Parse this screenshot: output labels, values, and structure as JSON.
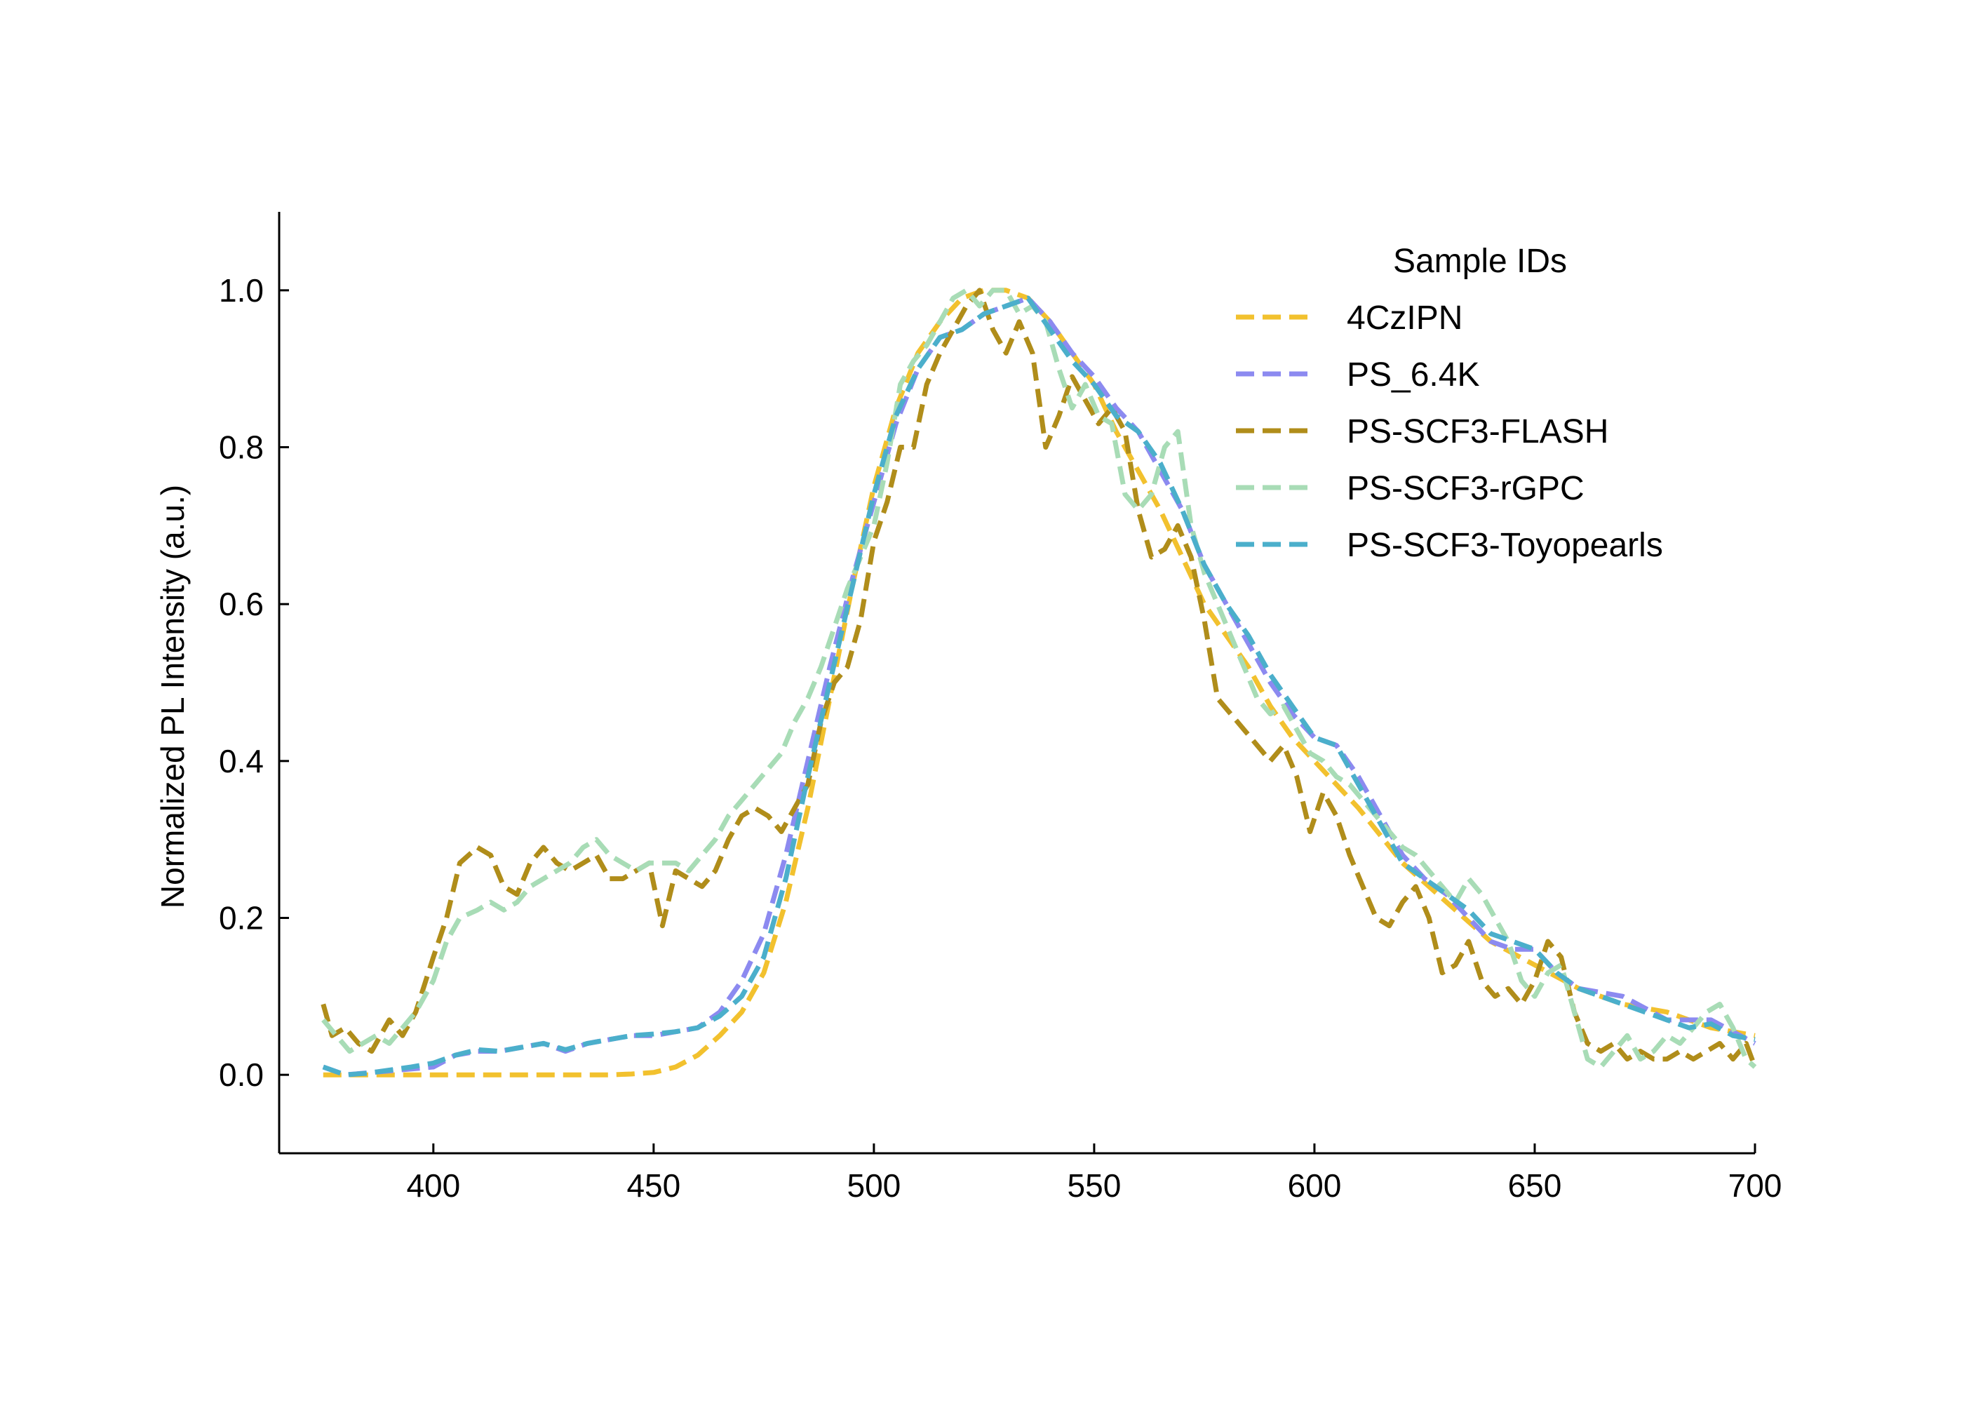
{
  "chart_data": {
    "type": "line",
    "xlabel": "",
    "ylabel": "Normalized PL Intensity (a.u.)",
    "xlim": [
      365,
      700
    ],
    "ylim": [
      -0.1,
      1.1
    ],
    "xticks": [
      "400",
      "450",
      "500",
      "550",
      "600",
      "650",
      "700"
    ],
    "yticks": [
      "0.0",
      "0.2",
      "0.4",
      "0.6",
      "0.8",
      "1.0"
    ],
    "grid": false,
    "legend": {
      "title": "Sample IDs",
      "position": "top-right"
    },
    "series": [
      {
        "name": "4CzIPN",
        "color": "#F2C12E",
        "x": [
          375,
          380,
          390,
          400,
          410,
          420,
          430,
          440,
          445,
          450,
          455,
          460,
          465,
          470,
          475,
          480,
          485,
          490,
          495,
          500,
          505,
          510,
          515,
          520,
          525,
          530,
          535,
          540,
          545,
          550,
          555,
          560,
          565,
          570,
          575,
          580,
          585,
          590,
          595,
          600,
          605,
          610,
          620,
          630,
          640,
          650,
          660,
          670,
          680,
          690,
          700
        ],
        "y": [
          0,
          0,
          0,
          0,
          0,
          0,
          0,
          0,
          0.001,
          0.003,
          0.01,
          0.025,
          0.05,
          0.08,
          0.13,
          0.22,
          0.34,
          0.48,
          0.62,
          0.75,
          0.85,
          0.92,
          0.96,
          0.99,
          1.0,
          1.0,
          0.99,
          0.96,
          0.92,
          0.88,
          0.82,
          0.77,
          0.72,
          0.66,
          0.6,
          0.56,
          0.52,
          0.47,
          0.43,
          0.4,
          0.37,
          0.34,
          0.27,
          0.22,
          0.17,
          0.14,
          0.11,
          0.09,
          0.08,
          0.06,
          0.05
        ]
      },
      {
        "name": "PS_6.4K",
        "color": "#8C8AF0",
        "x": [
          375,
          380,
          390,
          400,
          405,
          410,
          415,
          420,
          425,
          430,
          435,
          440,
          445,
          450,
          455,
          460,
          465,
          470,
          475,
          480,
          485,
          490,
          495,
          500,
          505,
          510,
          515,
          520,
          525,
          530,
          535,
          540,
          545,
          550,
          555,
          560,
          565,
          570,
          575,
          580,
          585,
          590,
          595,
          600,
          605,
          610,
          615,
          620,
          625,
          630,
          635,
          640,
          645,
          650,
          655,
          660,
          670,
          680,
          690,
          700
        ],
        "y": [
          0.01,
          0,
          0.005,
          0.01,
          0.025,
          0.03,
          0.03,
          0.035,
          0.04,
          0.03,
          0.04,
          0.045,
          0.05,
          0.05,
          0.055,
          0.06,
          0.08,
          0.12,
          0.18,
          0.28,
          0.4,
          0.52,
          0.63,
          0.73,
          0.83,
          0.9,
          0.94,
          0.95,
          0.97,
          0.98,
          0.99,
          0.96,
          0.92,
          0.89,
          0.85,
          0.82,
          0.77,
          0.72,
          0.65,
          0.6,
          0.55,
          0.5,
          0.46,
          0.43,
          0.42,
          0.38,
          0.33,
          0.28,
          0.25,
          0.23,
          0.2,
          0.17,
          0.16,
          0.16,
          0.13,
          0.11,
          0.1,
          0.07,
          0.07,
          0.04
        ]
      },
      {
        "name": "PS-SCF3-FLASH",
        "color": "#B08D1A",
        "x": [
          375,
          377,
          380,
          383,
          386,
          390,
          393,
          396,
          400,
          403,
          406,
          410,
          413,
          416,
          419,
          422,
          425,
          428,
          431,
          434,
          437,
          440,
          443,
          446,
          449,
          452,
          455,
          458,
          461,
          464,
          467,
          470,
          473,
          476,
          479,
          482,
          485,
          488,
          491,
          494,
          497,
          500,
          503,
          506,
          509,
          512,
          515,
          518,
          521,
          524,
          527,
          530,
          533,
          536,
          539,
          542,
          545,
          548,
          551,
          554,
          557,
          560,
          563,
          566,
          569,
          572,
          575,
          578,
          581,
          584,
          587,
          590,
          593,
          596,
          599,
          602,
          605,
          608,
          611,
          614,
          617,
          620,
          623,
          626,
          629,
          632,
          635,
          638,
          641,
          644,
          647,
          650,
          653,
          656,
          659,
          662,
          665,
          668,
          671,
          674,
          677,
          680,
          683,
          686,
          689,
          692,
          695,
          698,
          700
        ],
        "y": [
          0.09,
          0.05,
          0.06,
          0.04,
          0.03,
          0.07,
          0.05,
          0.08,
          0.15,
          0.2,
          0.27,
          0.29,
          0.28,
          0.24,
          0.23,
          0.27,
          0.29,
          0.27,
          0.26,
          0.27,
          0.28,
          0.25,
          0.25,
          0.26,
          0.27,
          0.19,
          0.26,
          0.25,
          0.24,
          0.26,
          0.3,
          0.33,
          0.34,
          0.33,
          0.31,
          0.34,
          0.37,
          0.45,
          0.5,
          0.52,
          0.58,
          0.68,
          0.73,
          0.8,
          0.8,
          0.88,
          0.92,
          0.95,
          0.98,
          1.0,
          0.95,
          0.92,
          0.96,
          0.92,
          0.8,
          0.84,
          0.89,
          0.86,
          0.83,
          0.85,
          0.82,
          0.72,
          0.66,
          0.67,
          0.7,
          0.66,
          0.58,
          0.48,
          0.46,
          0.44,
          0.42,
          0.4,
          0.42,
          0.38,
          0.31,
          0.36,
          0.33,
          0.28,
          0.24,
          0.2,
          0.19,
          0.22,
          0.24,
          0.2,
          0.13,
          0.14,
          0.17,
          0.12,
          0.1,
          0.11,
          0.09,
          0.12,
          0.17,
          0.15,
          0.08,
          0.04,
          0.03,
          0.04,
          0.02,
          0.03,
          0.02,
          0.02,
          0.03,
          0.02,
          0.03,
          0.04,
          0.02,
          0.04,
          0.01
        ]
      },
      {
        "name": "PS-SCF3-rGPC",
        "color": "#A8DCB6",
        "x": [
          375,
          378,
          381,
          384,
          387,
          390,
          393,
          396,
          400,
          403,
          406,
          410,
          413,
          416,
          419,
          422,
          425,
          428,
          431,
          434,
          437,
          440,
          443,
          446,
          449,
          452,
          455,
          458,
          461,
          464,
          467,
          470,
          473,
          476,
          479,
          482,
          485,
          488,
          491,
          494,
          497,
          500,
          503,
          506,
          509,
          512,
          515,
          518,
          521,
          524,
          527,
          530,
          533,
          536,
          539,
          542,
          545,
          548,
          551,
          554,
          557,
          560,
          563,
          566,
          569,
          572,
          575,
          578,
          581,
          584,
          587,
          590,
          593,
          596,
          599,
          602,
          605,
          608,
          611,
          614,
          617,
          620,
          623,
          626,
          629,
          632,
          635,
          638,
          641,
          644,
          647,
          650,
          653,
          656,
          659,
          662,
          665,
          668,
          671,
          674,
          677,
          680,
          683,
          686,
          689,
          692,
          695,
          698,
          700
        ],
        "y": [
          0.07,
          0.05,
          0.03,
          0.04,
          0.05,
          0.04,
          0.06,
          0.08,
          0.12,
          0.17,
          0.2,
          0.21,
          0.22,
          0.21,
          0.22,
          0.24,
          0.25,
          0.26,
          0.27,
          0.29,
          0.3,
          0.28,
          0.27,
          0.26,
          0.27,
          0.27,
          0.27,
          0.26,
          0.28,
          0.3,
          0.33,
          0.35,
          0.37,
          0.39,
          0.41,
          0.45,
          0.48,
          0.52,
          0.57,
          0.62,
          0.66,
          0.7,
          0.78,
          0.88,
          0.91,
          0.93,
          0.96,
          0.99,
          1.0,
          0.98,
          1.0,
          1.0,
          0.97,
          0.98,
          0.96,
          0.9,
          0.85,
          0.88,
          0.84,
          0.83,
          0.74,
          0.72,
          0.74,
          0.8,
          0.82,
          0.7,
          0.64,
          0.6,
          0.56,
          0.52,
          0.48,
          0.46,
          0.47,
          0.44,
          0.41,
          0.4,
          0.38,
          0.37,
          0.35,
          0.33,
          0.31,
          0.29,
          0.28,
          0.26,
          0.24,
          0.22,
          0.25,
          0.23,
          0.2,
          0.17,
          0.12,
          0.1,
          0.13,
          0.14,
          0.08,
          0.02,
          0.01,
          0.03,
          0.05,
          0.02,
          0.03,
          0.05,
          0.04,
          0.06,
          0.08,
          0.09,
          0.06,
          0.02,
          0.01
        ]
      },
      {
        "name": "PS-SCF3-Toyopearls",
        "color": "#4BAFCB",
        "x": [
          375,
          380,
          385,
          390,
          395,
          400,
          405,
          410,
          415,
          420,
          425,
          430,
          435,
          440,
          445,
          450,
          455,
          460,
          465,
          470,
          475,
          480,
          485,
          490,
          495,
          500,
          505,
          510,
          515,
          520,
          525,
          530,
          535,
          540,
          545,
          550,
          555,
          560,
          565,
          570,
          575,
          580,
          585,
          590,
          595,
          600,
          605,
          610,
          615,
          620,
          625,
          630,
          635,
          640,
          645,
          650,
          655,
          660,
          665,
          670,
          675,
          680,
          685,
          690,
          695,
          700
        ],
        "y": [
          0.01,
          0,
          0.002,
          0.006,
          0.01,
          0.015,
          0.025,
          0.032,
          0.03,
          0.035,
          0.04,
          0.032,
          0.04,
          0.045,
          0.05,
          0.052,
          0.055,
          0.06,
          0.075,
          0.1,
          0.15,
          0.25,
          0.38,
          0.5,
          0.62,
          0.74,
          0.84,
          0.9,
          0.94,
          0.95,
          0.97,
          0.98,
          0.99,
          0.95,
          0.91,
          0.88,
          0.84,
          0.82,
          0.78,
          0.72,
          0.65,
          0.6,
          0.56,
          0.51,
          0.47,
          0.43,
          0.42,
          0.37,
          0.32,
          0.27,
          0.25,
          0.23,
          0.21,
          0.18,
          0.17,
          0.16,
          0.13,
          0.11,
          0.1,
          0.09,
          0.08,
          0.07,
          0.06,
          0.065,
          0.05,
          0.045
        ]
      }
    ]
  }
}
